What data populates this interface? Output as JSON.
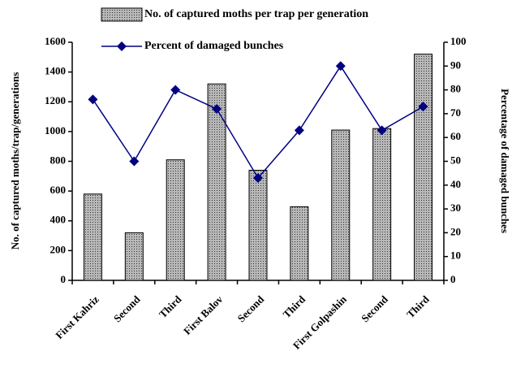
{
  "chart_data": {
    "type": "bar",
    "categories": [
      "First Kahriz",
      "Second",
      "Third",
      "First Balov",
      "Second",
      "Third",
      "First Golpashin",
      "Second",
      "Third"
    ],
    "series": [
      {
        "name": "No. of captured moths per trap per generation",
        "type": "bar",
        "color": "#a0a0a0",
        "values": [
          580,
          320,
          810,
          1320,
          740,
          495,
          1010,
          1020,
          1520
        ]
      },
      {
        "name": "Percent of damaged bunches",
        "type": "line",
        "axis": "y2",
        "color": "#000080",
        "values": [
          76,
          50,
          80,
          72,
          43,
          63,
          90,
          63,
          73
        ]
      }
    ],
    "y_label": "No. of captured moths/trap/generations",
    "y2_label": "Percentage of damaged bunches",
    "ylim": [
      0,
      1600
    ],
    "yticks": [
      0,
      200,
      400,
      600,
      800,
      1000,
      1200,
      1400,
      1600
    ],
    "y2lim": [
      0,
      100
    ],
    "y2ticks": [
      0,
      10,
      20,
      30,
      40,
      50,
      60,
      70,
      80,
      90,
      100
    ],
    "legend": "top"
  }
}
